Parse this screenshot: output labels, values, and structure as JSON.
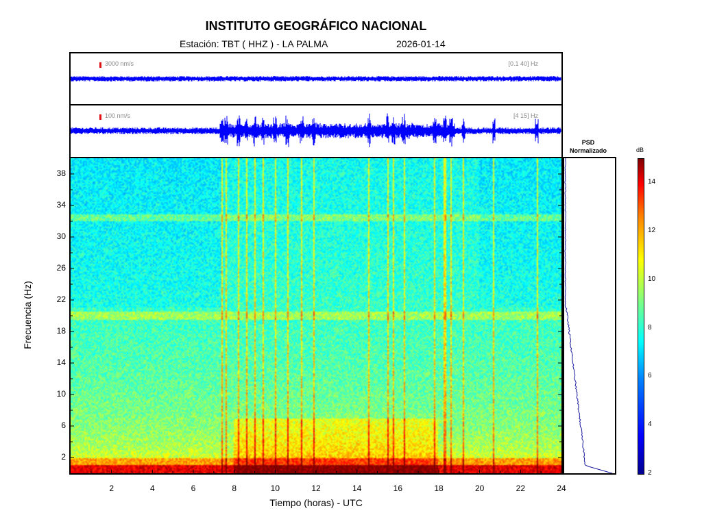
{
  "header": {
    "title": "INSTITUTO GEOGRÁFICO NACIONAL",
    "station": "Estación:  TBT ( HHZ ) - LA PALMA",
    "date": "2026-01-14"
  },
  "traces": [
    {
      "scale": "3000 nm/s",
      "band": "[0.1 40] Hz",
      "color": "#0000ff"
    },
    {
      "scale": "100 nm/s",
      "band": "[4 15] Hz",
      "color": "#0000ff"
    }
  ],
  "psd": {
    "title_line1": "PSD",
    "title_line2": "Normalizado",
    "line_color": "#1a1a9e"
  },
  "colorbar": {
    "unit": "dB",
    "ticks": [
      "2",
      "4",
      "6",
      "8",
      "10",
      "12",
      "14"
    ],
    "min": 2,
    "max": 15
  },
  "chart_data": {
    "type": "heatmap",
    "title": "INSTITUTO GEOGRÁFICO NACIONAL",
    "xlabel": "Tiempo (horas) - UTC",
    "ylabel": "Frecuencia  (Hz)",
    "xlim": [
      0,
      24
    ],
    "ylim": [
      0,
      40
    ],
    "x_ticks": [
      "2",
      "4",
      "6",
      "8",
      "10",
      "12",
      "14",
      "16",
      "18",
      "20",
      "22",
      "24"
    ],
    "y_ticks": [
      "2",
      "6",
      "10",
      "14",
      "18",
      "22",
      "26",
      "30",
      "34",
      "38"
    ],
    "color_scale": "jet",
    "color_unit": "dB",
    "spectral_lines_hz": [
      32.5,
      20.0
    ],
    "transient_events_hours": [
      7.4,
      7.6,
      8.2,
      8.6,
      9.0,
      9.4,
      10.0,
      10.6,
      11.3,
      11.9,
      14.6,
      15.5,
      15.8,
      16.3,
      17.8,
      18.3,
      18.6,
      19.2,
      20.7,
      22.8
    ]
  }
}
